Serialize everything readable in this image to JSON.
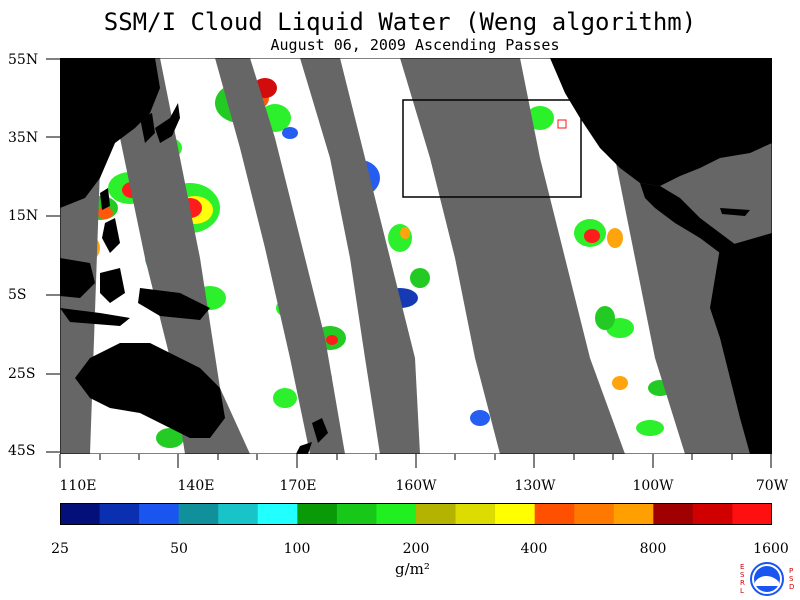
{
  "title": "SSM/I Cloud Liquid Water (Weng algorithm)",
  "subtitle": "August 06, 2009  Ascending Passes",
  "lat_labels": [
    "55N",
    "35N",
    "15N",
    "5S",
    "25S",
    "45S"
  ],
  "lon_labels": [
    "110E",
    "140E",
    "170E",
    "160W",
    "130W",
    "100W",
    "70W"
  ],
  "colorbar": {
    "colors": [
      "#03107a",
      "#0a2fb0",
      "#1a55f0",
      "#10909a",
      "#18c4c8",
      "#22ffff",
      "#0a9a08",
      "#18c818",
      "#20f020",
      "#b4b400",
      "#dcdc00",
      "#ffff00",
      "#ff5000",
      "#ff7800",
      "#ffa000",
      "#a00000",
      "#d00000",
      "#ff1010"
    ],
    "tick_labels": [
      "25",
      "50",
      "100",
      "200",
      "400",
      "800",
      "1600"
    ],
    "units": "g/m²"
  },
  "logo": {
    "name": "NOAA",
    "left_letters": "ESRL",
    "right_letters": "PSD"
  },
  "colors": {
    "land": "#000000",
    "no_data": "#666666",
    "ocean_clear": "#ffffff"
  }
}
